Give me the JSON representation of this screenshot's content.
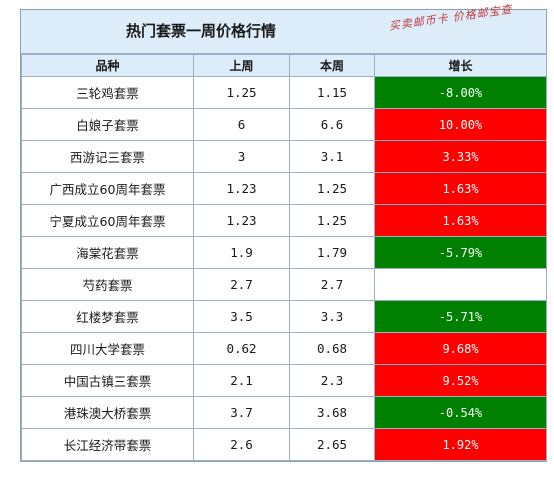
{
  "title": "热门套票一周价格行情",
  "watermark": "买卖邮币卡 价格邮宝查",
  "colors": {
    "up": "#ff0000",
    "down": "#008000",
    "header_bg": "#dcecf8"
  },
  "columns": [
    "品种",
    "上周",
    "本周",
    "增长"
  ],
  "rows": [
    {
      "name": "三轮鸡套票",
      "last": "1.25",
      "this": "1.15",
      "change": "-8.00%",
      "trend": "down"
    },
    {
      "name": "白娘子套票",
      "last": "6",
      "this": "6.6",
      "change": "10.00%",
      "trend": "up"
    },
    {
      "name": "西游记三套票",
      "last": "3",
      "this": "3.1",
      "change": "3.33%",
      "trend": "up"
    },
    {
      "name": "广西成立60周年套票",
      "last": "1.23",
      "this": "1.25",
      "change": "1.63%",
      "trend": "up"
    },
    {
      "name": "宁夏成立60周年套票",
      "last": "1.23",
      "this": "1.25",
      "change": "1.63%",
      "trend": "up"
    },
    {
      "name": "海棠花套票",
      "last": "1.9",
      "this": "1.79",
      "change": "-5.79%",
      "trend": "down"
    },
    {
      "name": "芍药套票",
      "last": "2.7",
      "this": "2.7",
      "change": "",
      "trend": "flat"
    },
    {
      "name": "红楼梦套票",
      "last": "3.5",
      "this": "3.3",
      "change": "-5.71%",
      "trend": "down"
    },
    {
      "name": "四川大学套票",
      "last": "0.62",
      "this": "0.68",
      "change": "9.68%",
      "trend": "up"
    },
    {
      "name": "中国古镇三套票",
      "last": "2.1",
      "this": "2.3",
      "change": "9.52%",
      "trend": "up"
    },
    {
      "name": "港珠澳大桥套票",
      "last": "3.7",
      "this": "3.68",
      "change": "-0.54%",
      "trend": "down"
    },
    {
      "name": "长江经济带套票",
      "last": "2.6",
      "this": "2.65",
      "change": "1.92%",
      "trend": "up"
    }
  ]
}
